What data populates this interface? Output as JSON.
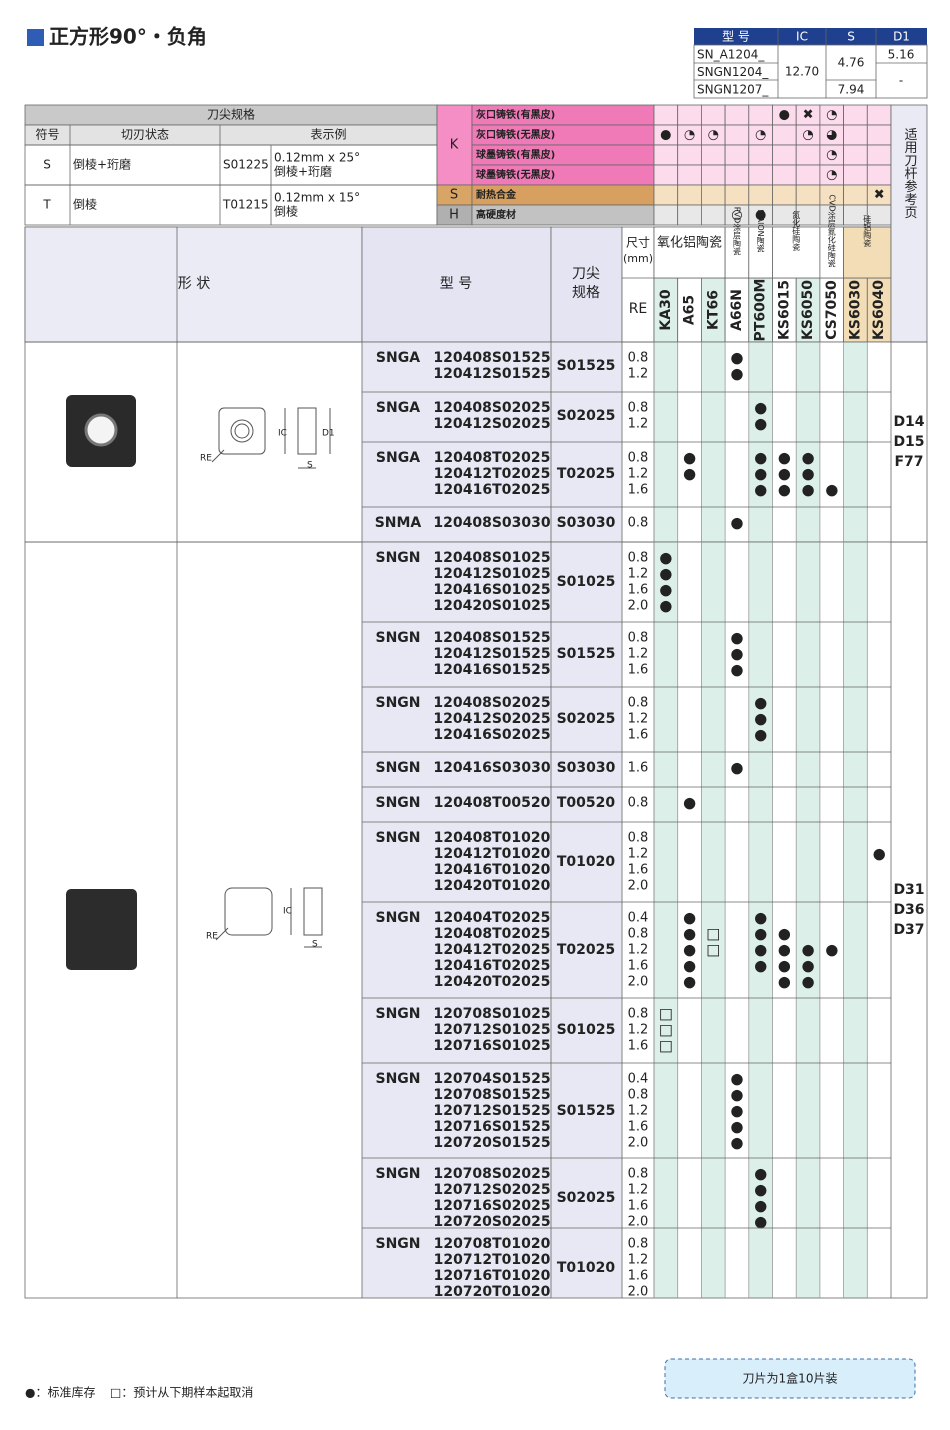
{
  "title": "正方形90°・负角",
  "spec_table": {
    "headers": [
      "型 号",
      "IC",
      "S",
      "D1"
    ],
    "models": [
      "SN_A1204_",
      "SNGN1204_",
      "SNGN1207_"
    ],
    "ic": "12.70",
    "s": [
      "4.76",
      "7.94"
    ],
    "d1": [
      "5.16",
      "-"
    ]
  },
  "edge_spec": {
    "title": "刀尖规格",
    "headers": [
      "符号",
      "切刃状态",
      "表示例"
    ],
    "rows": [
      {
        "symbol": "S",
        "state": "倒棱+珩磨",
        "example": "S01225",
        "detail": [
          "0.12mm x 25°",
          "倒棱+珩磨"
        ]
      },
      {
        "symbol": "T",
        "state": "倒棱",
        "example": "T01215",
        "detail": [
          "0.12mm x 15°",
          "倒棱"
        ]
      }
    ]
  },
  "materials": [
    {
      "group": "K",
      "rows": [
        {
          "name": "灰口铸铁(有黑皮)",
          "marks": {
            "KS6015": "●",
            "KS6050": "✖",
            "CS7050": "◔"
          }
        },
        {
          "name": "灰口铸铁(无黑皮)",
          "marks": {
            "KA30": "●",
            "A65": "◔",
            "KT66": "◔",
            "PT600M": "◔",
            "KS6050": "◔",
            "CS7050": "◕"
          }
        },
        {
          "name": "球墨铸铁(有黑皮)",
          "marks": {
            "CS7050": "◔"
          }
        },
        {
          "name": "球墨铸铁(无黑皮)",
          "marks": {
            "CS7050": "◔"
          }
        }
      ]
    },
    {
      "group": "S",
      "rows": [
        {
          "name": "耐热合金",
          "marks": {
            "KS6040": "✖"
          }
        }
      ]
    },
    {
      "group": "H",
      "rows": [
        {
          "name": "高硬度材",
          "marks": {
            "A66N": "○",
            "PT600M": "●"
          }
        }
      ]
    }
  ],
  "header": {
    "shape": "形 状",
    "model": "型 号",
    "tip": [
      "刀尖",
      "规格"
    ],
    "size": [
      "尺寸",
      "(mm)"
    ],
    "re": "RE",
    "ref": "适用刀杆参考页",
    "grade_groups": [
      "氧化铝陶瓷",
      "PVD涂层陶瓷",
      "SiAlON陶瓷",
      "氮化硅陶瓷",
      "CVD涂层氮化硅陶瓷",
      "硅铝陶瓷"
    ]
  },
  "grades": [
    "KA30",
    "A65",
    "KT66",
    "A66N",
    "PT600M",
    "KS6015",
    "KS6050",
    "CS7050",
    "KS6030",
    "KS6040"
  ],
  "groups": [
    {
      "refs": [
        "D14",
        "D15",
        "F77"
      ],
      "items": [
        {
          "type": "SNGA",
          "codes": [
            "120408S01525",
            "120412S01525"
          ],
          "tip": "S01525",
          "re": [
            "0.8",
            "1.2"
          ],
          "marks": {
            "A66N": [
              "●",
              "●"
            ]
          }
        },
        {
          "type": "SNGA",
          "codes": [
            "120408S02025",
            "120412S02025"
          ],
          "tip": "S02025",
          "re": [
            "0.8",
            "1.2"
          ],
          "marks": {
            "PT600M": [
              "●",
              "●"
            ]
          }
        },
        {
          "type": "SNGA",
          "codes": [
            "120408T02025",
            "120412T02025",
            "120416T02025"
          ],
          "tip": "T02025",
          "re": [
            "0.8",
            "1.2",
            "1.6"
          ],
          "marks": {
            "A65": [
              "●",
              "●",
              null
            ],
            "PT600M": [
              "●",
              "●",
              "●"
            ],
            "KS6015": [
              "●",
              "●",
              "●"
            ],
            "KS6050": [
              "●",
              "●",
              "●"
            ],
            "CS7050": [
              null,
              null,
              "●"
            ]
          }
        },
        {
          "type": "SNMA",
          "codes": [
            "120408S03030"
          ],
          "tip": "S03030",
          "re": [
            "0.8"
          ],
          "marks": {
            "A66N": [
              "●"
            ]
          }
        }
      ]
    },
    {
      "refs": [
        "D31",
        "D36",
        "D37"
      ],
      "items": [
        {
          "type": "SNGN",
          "codes": [
            "120408S01025",
            "120412S01025",
            "120416S01025",
            "120420S01025"
          ],
          "tip": "S01025",
          "re": [
            "0.8",
            "1.2",
            "1.6",
            "2.0"
          ],
          "marks": {
            "KA30": [
              "●",
              "●",
              "●",
              "●"
            ]
          }
        },
        {
          "type": "SNGN",
          "codes": [
            "120408S01525",
            "120412S01525",
            "120416S01525"
          ],
          "tip": "S01525",
          "re": [
            "0.8",
            "1.2",
            "1.6"
          ],
          "marks": {
            "A66N": [
              "●",
              "●",
              "●"
            ]
          }
        },
        {
          "type": "SNGN",
          "codes": [
            "120408S02025",
            "120412S02025",
            "120416S02025"
          ],
          "tip": "S02025",
          "re": [
            "0.8",
            "1.2",
            "1.6"
          ],
          "marks": {
            "PT600M": [
              "●",
              "●",
              "●"
            ]
          }
        },
        {
          "type": "SNGN",
          "codes": [
            "120416S03030"
          ],
          "tip": "S03030",
          "re": [
            "1.6"
          ],
          "marks": {
            "A66N": [
              "●"
            ]
          }
        },
        {
          "type": "SNGN",
          "codes": [
            "120408T00520"
          ],
          "tip": "T00520",
          "re": [
            "0.8"
          ],
          "marks": {
            "A65": [
              "●"
            ]
          }
        },
        {
          "type": "SNGN",
          "codes": [
            "120408T01020",
            "120412T01020",
            "120416T01020",
            "120420T01020"
          ],
          "tip": "T01020",
          "re": [
            "0.8",
            "1.2",
            "1.6",
            "2.0"
          ],
          "marks": {
            "KS6040": [
              null,
              "●",
              null,
              null
            ]
          }
        },
        {
          "type": "SNGN",
          "codes": [
            "120404T02025",
            "120408T02025",
            "120412T02025",
            "120416T02025",
            "120420T02025"
          ],
          "tip": "T02025",
          "re": [
            "0.4",
            "0.8",
            "1.2",
            "1.6",
            "2.0"
          ],
          "marks": {
            "A65": [
              "●",
              "●",
              "●",
              "●",
              "●"
            ],
            "KT66": [
              null,
              "□",
              "□",
              null,
              null
            ],
            "PT600M": [
              "●",
              "●",
              "●",
              "●",
              null
            ],
            "KS6015": [
              null,
              "●",
              "●",
              "●",
              "●"
            ],
            "KS6050": [
              null,
              null,
              "●",
              "●",
              "●"
            ],
            "CS7050": [
              null,
              null,
              "●",
              null,
              null
            ]
          }
        },
        {
          "type": "SNGN",
          "codes": [
            "120708S01025",
            "120712S01025",
            "120716S01025"
          ],
          "tip": "S01025",
          "re": [
            "0.8",
            "1.2",
            "1.6"
          ],
          "marks": {
            "KA30": [
              "□",
              "□",
              "□"
            ]
          }
        },
        {
          "type": "SNGN",
          "codes": [
            "120704S01525",
            "120708S01525",
            "120712S01525",
            "120716S01525",
            "120720S01525"
          ],
          "tip": "S01525",
          "re": [
            "0.4",
            "0.8",
            "1.2",
            "1.6",
            "2.0"
          ],
          "marks": {
            "A66N": [
              "●",
              "●",
              "●",
              "●",
              "●"
            ]
          }
        },
        {
          "type": "SNGN",
          "codes": [
            "120708S02025",
            "120712S02025",
            "120716S02025",
            "120720S02025"
          ],
          "tip": "S02025",
          "re": [
            "0.8",
            "1.2",
            "1.6",
            "2.0"
          ],
          "marks": {
            "PT600M": [
              "●",
              "●",
              "●",
              "●"
            ]
          }
        },
        {
          "type": "SNGN",
          "codes": [
            "120708T01020",
            "120712T01020",
            "120716T01020",
            "120720T01020"
          ],
          "tip": "T01020",
          "re": [
            "0.8",
            "1.2",
            "1.6",
            "2.0"
          ],
          "marks": {}
        }
      ]
    }
  ],
  "legend": [
    "●：标准库存",
    "□：预计从下期样本起取消"
  ],
  "note": "刀片为1盒10片装"
}
